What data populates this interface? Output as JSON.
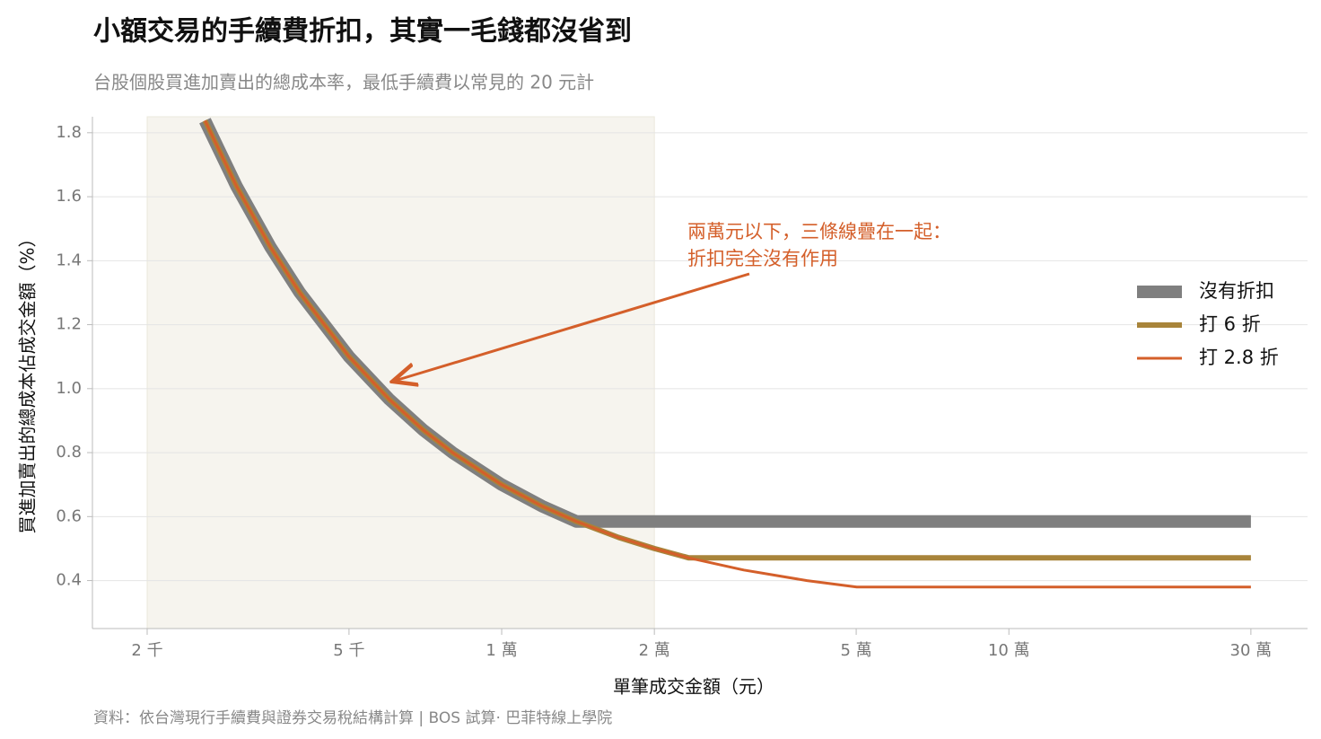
{
  "chart_data": {
    "type": "line",
    "title": "小額交易的手續費折扣，其實一毛錢都沒省到",
    "subtitle": "台股個股買進加賣出的總成本率，最低手續費以常見的 20 元計",
    "x_label": "單筆成交金額（元）",
    "y_label": "買進加賣出的總成本佔成交金額（%）",
    "source": "資料：依台灣現行手續費與證券交易稅結構計算 | BOS 試算‧ 巴菲特線上學院",
    "annotation": [
      "兩萬元以下，三條線疊在一起：",
      "折扣完全沒有作用"
    ],
    "annotation_color": "#d45f2a",
    "x_log": true,
    "xlim": [
      1560,
      388000
    ],
    "ylim": [
      0.25,
      1.85
    ],
    "highlight_range": [
      2000,
      20000
    ],
    "xticks": [
      {
        "value": 2000,
        "label": "2 千"
      },
      {
        "value": 5000,
        "label": "5 千"
      },
      {
        "value": 10000,
        "label": "1 萬"
      },
      {
        "value": 20000,
        "label": "2 萬"
      },
      {
        "value": 50000,
        "label": "5 萬"
      },
      {
        "value": 100000,
        "label": "10 萬"
      },
      {
        "value": 300000,
        "label": "30 萬"
      }
    ],
    "yticks": [
      0.4,
      0.6,
      0.8,
      {
        "value": 1.0,
        "label": "1.0"
      },
      1.2,
      1.4,
      1.6,
      1.8
    ],
    "grid": true,
    "legend": "right",
    "x": [
      2600,
      3000,
      3500,
      4000,
      5000,
      6000,
      7000,
      8000,
      10000,
      12000,
      14035,
      17000,
      20000,
      23392,
      30000,
      40000,
      50125,
      70000,
      100000,
      200000,
      300000
    ],
    "series": [
      {
        "name": "沒有折扣",
        "color": "#7f7f7f",
        "line_width": 14,
        "values": [
          1.838,
          1.633,
          1.443,
          1.3,
          1.1,
          0.967,
          0.871,
          0.8,
          0.7,
          0.633,
          0.585,
          0.585,
          0.585,
          0.585,
          0.585,
          0.585,
          0.585,
          0.585,
          0.585,
          0.585,
          0.585
        ]
      },
      {
        "name": "打 6 折",
        "color": "#a8843a",
        "line_width": 6,
        "values": [
          1.838,
          1.633,
          1.443,
          1.3,
          1.1,
          0.967,
          0.871,
          0.8,
          0.7,
          0.633,
          0.585,
          0.535,
          0.5,
          0.471,
          0.471,
          0.471,
          0.471,
          0.471,
          0.471,
          0.471,
          0.471
        ]
      },
      {
        "name": "打 2.8 折",
        "color": "#d45f2a",
        "line_width": 3,
        "values": [
          1.838,
          1.633,
          1.443,
          1.3,
          1.1,
          0.967,
          0.871,
          0.8,
          0.7,
          0.633,
          0.585,
          0.535,
          0.5,
          0.471,
          0.433,
          0.4,
          0.38,
          0.38,
          0.38,
          0.38,
          0.38
        ]
      }
    ]
  }
}
